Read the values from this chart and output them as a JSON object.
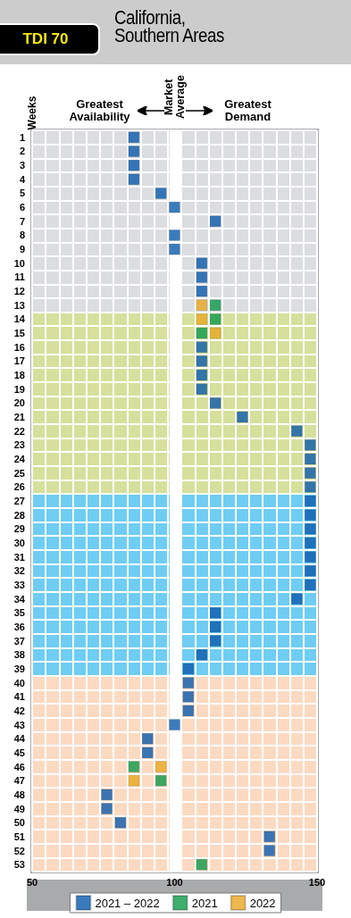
{
  "chart_data": {
    "type": "scatter",
    "title": "California, Southern Areas",
    "subtitle": "TDI 70",
    "ylabel": "Weeks",
    "annotations": [
      "Greatest Availability",
      "Greatest Demand"
    ],
    "categories": [
      "1",
      "2",
      "3",
      "4",
      "5",
      "6",
      "7",
      "8",
      "9",
      "10",
      "11",
      "12",
      "13",
      "14",
      "15",
      "16",
      "17",
      "18",
      "19",
      "20",
      "21",
      "22",
      "23",
      "24",
      "25",
      "26",
      "27",
      "28",
      "29",
      "30",
      "31",
      "32",
      "33",
      "34",
      "35",
      "36",
      "37",
      "38",
      "39",
      "40",
      "41",
      "42",
      "43",
      "44",
      "45",
      "46",
      "47",
      "48",
      "49",
      "50",
      "51",
      "52",
      "53"
    ],
    "orientation": "horizontal",
    "xlim": [
      50,
      150
    ],
    "xticks": [
      50,
      100,
      150
    ],
    "marker": "square",
    "legend": "bottom",
    "series": [
      {
        "name": "2021 – 2022",
        "color": "#0a5aab",
        "values": [
          85.7,
          85.7,
          85.7,
          85.7,
          95.2,
          100,
          114.3,
          100,
          100,
          109.5,
          109.5,
          109.5,
          null,
          null,
          null,
          109.5,
          109.5,
          109.5,
          109.5,
          114.3,
          123.8,
          142.9,
          147.6,
          147.6,
          147.6,
          147.6,
          147.6,
          147.6,
          147.6,
          147.6,
          147.6,
          147.6,
          147.6,
          142.9,
          114.3,
          114.3,
          114.3,
          109.5,
          104.8,
          104.8,
          104.8,
          104.8,
          100,
          90.5,
          90.5,
          null,
          null,
          76.2,
          76.2,
          81.0,
          133.3,
          133.3,
          null
        ]
      },
      {
        "name": "2021",
        "color": "#0c9a4a",
        "values": [
          null,
          null,
          null,
          null,
          null,
          null,
          null,
          null,
          null,
          null,
          null,
          null,
          114.3,
          114.3,
          109.5,
          null,
          null,
          null,
          null,
          null,
          null,
          null,
          null,
          null,
          null,
          null,
          null,
          null,
          null,
          null,
          null,
          null,
          null,
          null,
          null,
          null,
          null,
          null,
          null,
          null,
          null,
          null,
          null,
          null,
          null,
          85.7,
          95.2,
          null,
          null,
          null,
          null,
          null,
          109.5
        ]
      },
      {
        "name": "2022",
        "color": "#e9a81f",
        "values": [
          null,
          null,
          null,
          null,
          null,
          null,
          null,
          null,
          null,
          null,
          null,
          null,
          109.5,
          109.5,
          114.3,
          null,
          null,
          null,
          null,
          null,
          null,
          null,
          null,
          null,
          null,
          null,
          null,
          null,
          null,
          null,
          null,
          null,
          null,
          null,
          null,
          null,
          null,
          null,
          null,
          null,
          null,
          null,
          null,
          null,
          null,
          95.2,
          85.7,
          null,
          null,
          null,
          null,
          null,
          null
        ]
      }
    ],
    "bands": [
      {
        "axis": "y",
        "from": "1",
        "to": "13",
        "color": "#dcdde0"
      },
      {
        "axis": "y",
        "from": "14",
        "to": "26",
        "color": "#d6e09c"
      },
      {
        "axis": "y",
        "from": "27",
        "to": "39",
        "color": "#6fcdf3"
      },
      {
        "axis": "y",
        "from": "40",
        "to": "53",
        "color": "#fcdac2"
      }
    ],
    "ref_lines": [
      {
        "axis": "x",
        "value": 100,
        "label": "Market Average",
        "color": "#ffffff"
      }
    ]
  }
}
